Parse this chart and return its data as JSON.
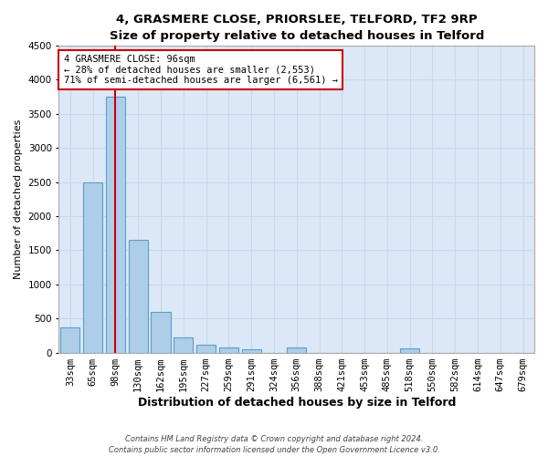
{
  "title": "4, GRASMERE CLOSE, PRIORSLEE, TELFORD, TF2 9RP",
  "subtitle": "Size of property relative to detached houses in Telford",
  "xlabel": "Distribution of detached houses by size in Telford",
  "ylabel": "Number of detached properties",
  "categories": [
    "33sqm",
    "65sqm",
    "98sqm",
    "130sqm",
    "162sqm",
    "195sqm",
    "227sqm",
    "259sqm",
    "291sqm",
    "324sqm",
    "356sqm",
    "388sqm",
    "421sqm",
    "453sqm",
    "485sqm",
    "518sqm",
    "550sqm",
    "582sqm",
    "614sqm",
    "647sqm",
    "679sqm"
  ],
  "values": [
    370,
    2500,
    3750,
    1650,
    600,
    225,
    110,
    70,
    50,
    0,
    70,
    0,
    0,
    0,
    0,
    55,
    0,
    0,
    0,
    0,
    0
  ],
  "bar_color": "#aecde8",
  "bar_edge_color": "#5a9fc8",
  "grid_color": "#c8d8ee",
  "background_color": "#dce8f8",
  "ylim": [
    0,
    4500
  ],
  "yticks": [
    0,
    500,
    1000,
    1500,
    2000,
    2500,
    3000,
    3500,
    4000,
    4500
  ],
  "vline_x": 1.97,
  "vline_color": "#cc0000",
  "annotation_line1": "4 GRASMERE CLOSE: 96sqm",
  "annotation_line2": "← 28% of detached houses are smaller (2,553)",
  "annotation_line3": "71% of semi-detached houses are larger (6,561) →",
  "annotation_box_color": "#cc0000",
  "footer_line1": "Contains HM Land Registry data © Crown copyright and database right 2024.",
  "footer_line2": "Contains public sector information licensed under the Open Government Licence v3.0.",
  "title_fontsize": 9.5,
  "subtitle_fontsize": 9,
  "ylabel_fontsize": 8,
  "xlabel_fontsize": 9,
  "tick_fontsize": 7.5,
  "annotation_fontsize": 7.5,
  "footer_fontsize": 6
}
